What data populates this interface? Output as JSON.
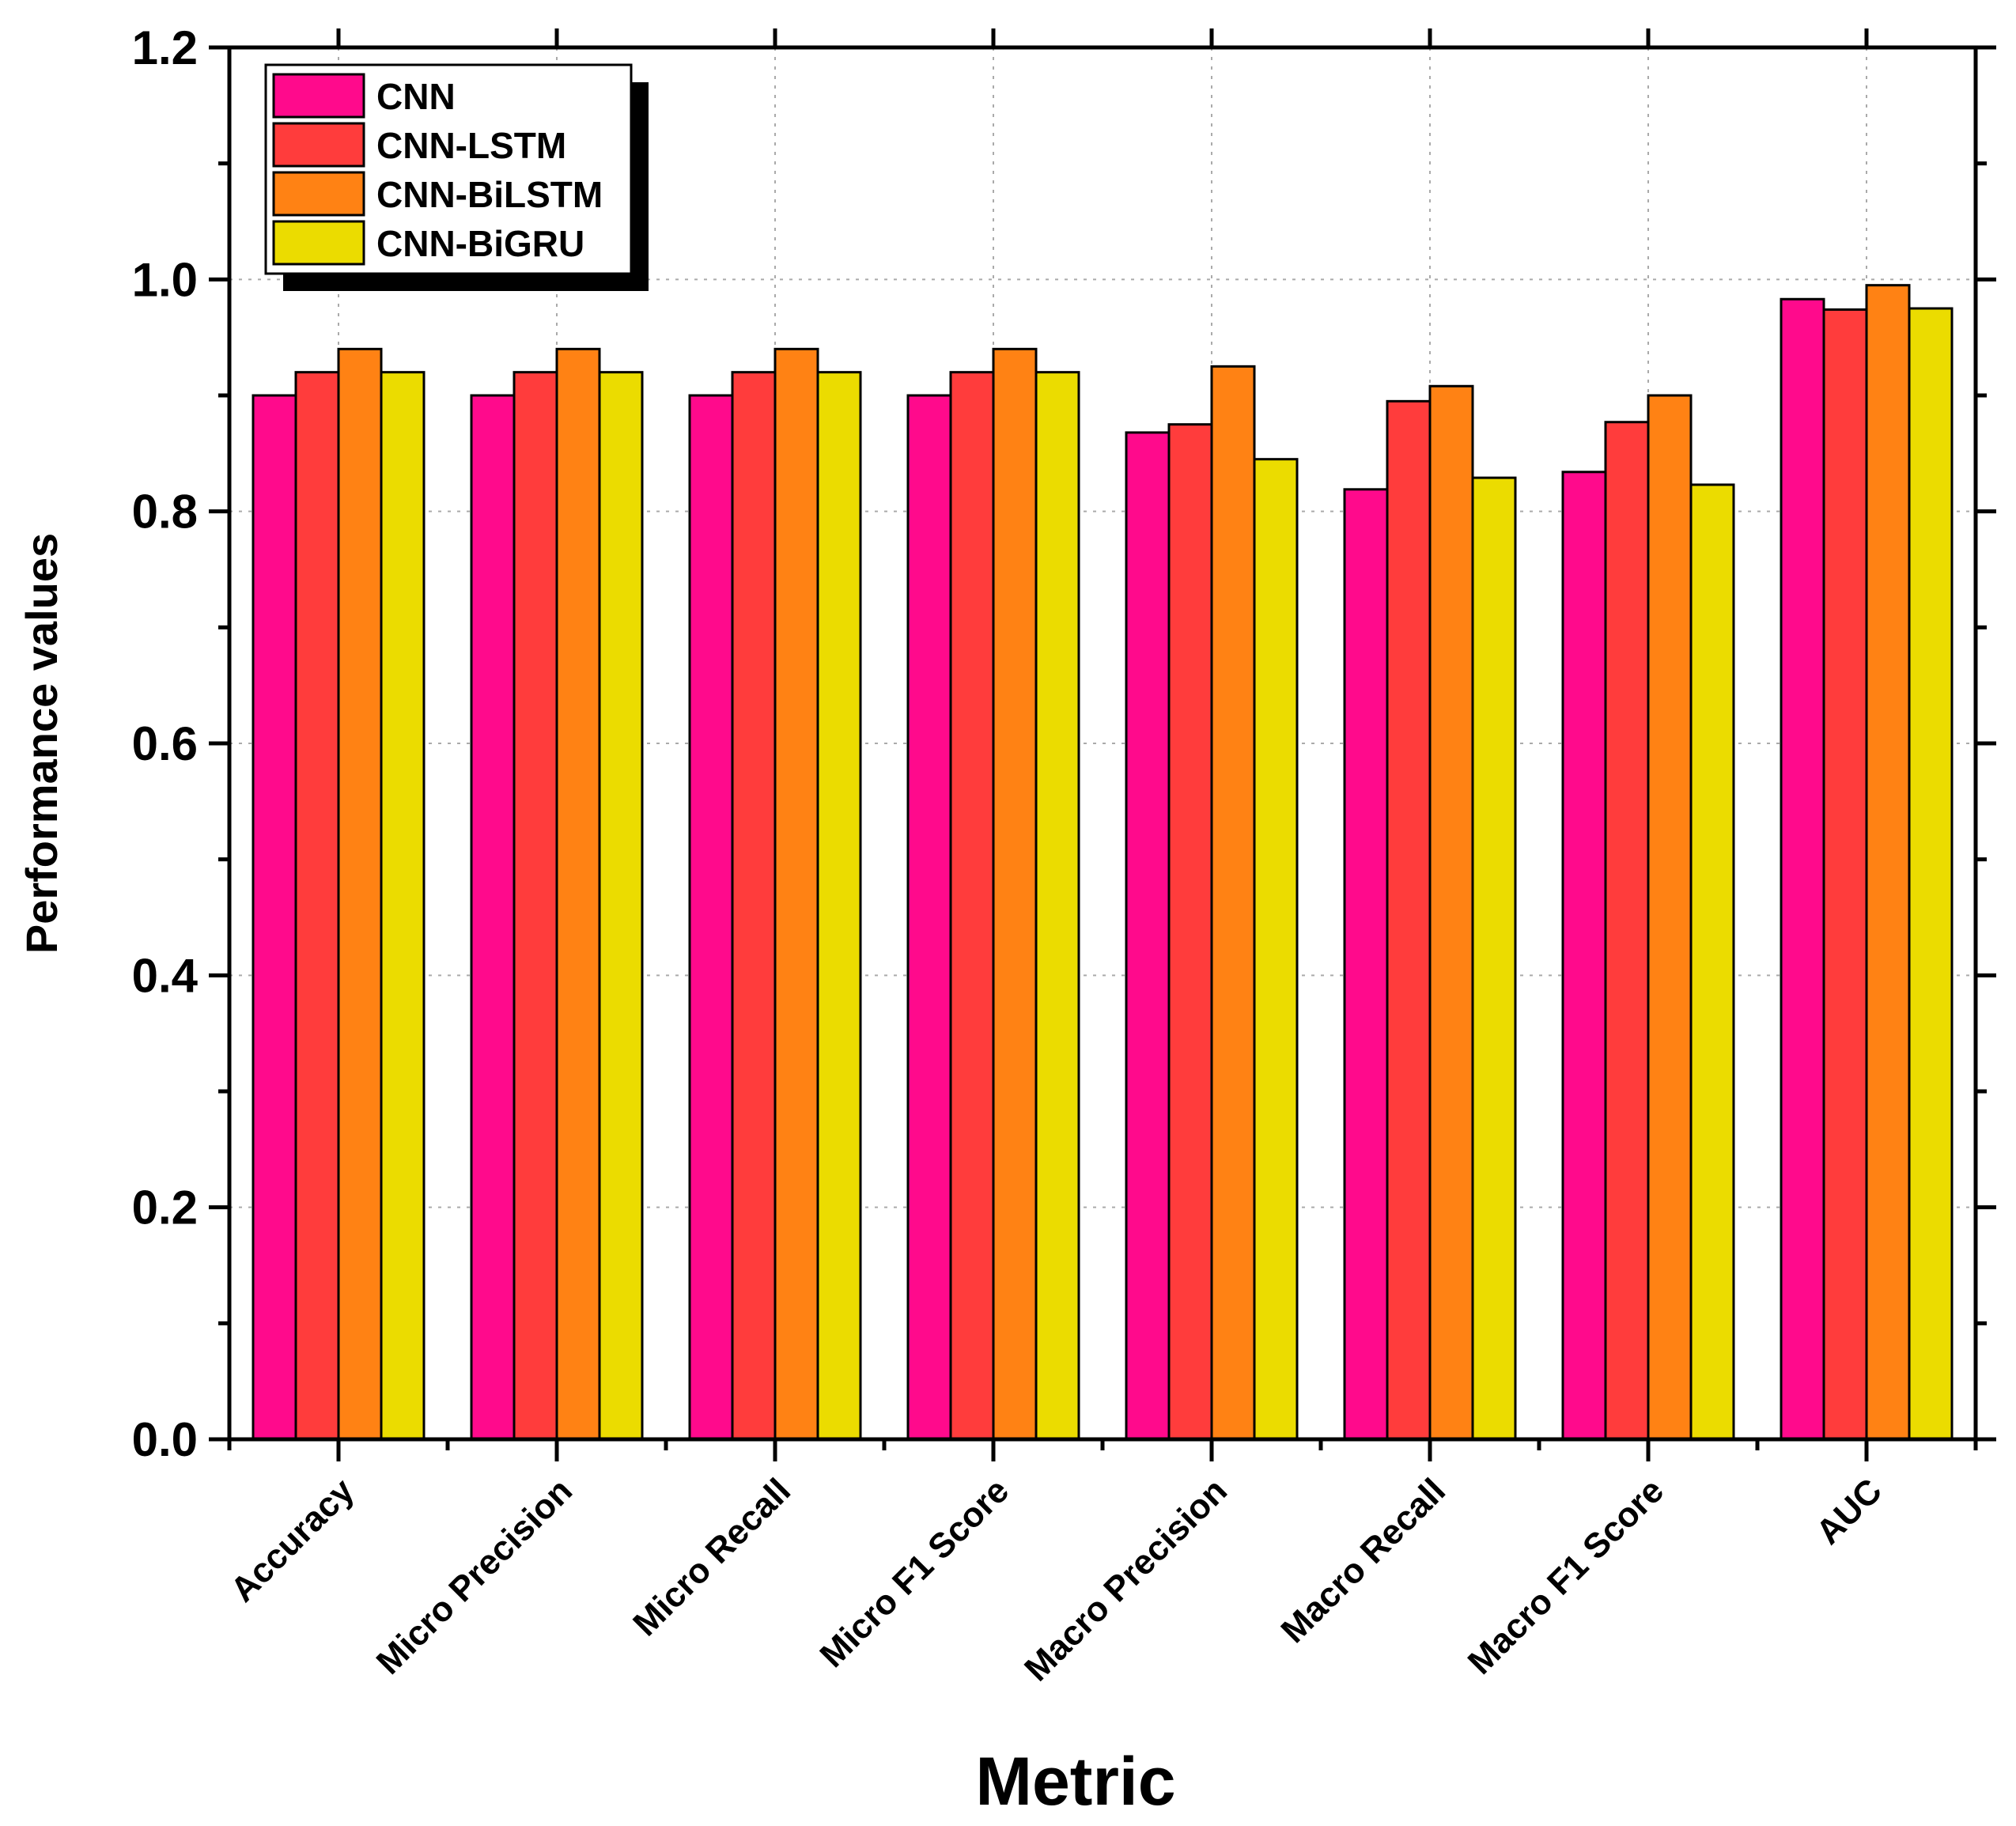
{
  "chart_data": {
    "type": "bar",
    "title": "",
    "xlabel": "Metric",
    "ylabel": "Performance values",
    "ylim": [
      0,
      1.2
    ],
    "yticks": [
      "0.0",
      "0.2",
      "0.4",
      "0.6",
      "0.8",
      "1.0",
      "1.2"
    ],
    "grid": true,
    "legend_position": "top-left",
    "categories": [
      "Accuracy",
      "Micro Precision",
      "Micro Recall",
      "Micro F1 Score",
      "Macro Precision",
      "Macro Recall",
      "Macro F1 Score",
      "AUC"
    ],
    "series": [
      {
        "name": "CNN",
        "color": "#ff0a8c",
        "values": [
          0.9,
          0.9,
          0.9,
          0.9,
          0.868,
          0.819,
          0.834,
          0.983
        ]
      },
      {
        "name": "CNN-LSTM",
        "color": "#ff3c3c",
        "values": [
          0.92,
          0.92,
          0.92,
          0.92,
          0.875,
          0.895,
          0.877,
          0.974
        ]
      },
      {
        "name": "CNN-BiLSTM",
        "color": "#ff8214",
        "values": [
          0.94,
          0.94,
          0.94,
          0.94,
          0.925,
          0.908,
          0.9,
          0.995
        ]
      },
      {
        "name": "CNN-BiGRU",
        "color": "#ebdc00",
        "values": [
          0.92,
          0.92,
          0.92,
          0.92,
          0.845,
          0.829,
          0.823,
          0.975
        ]
      }
    ]
  }
}
